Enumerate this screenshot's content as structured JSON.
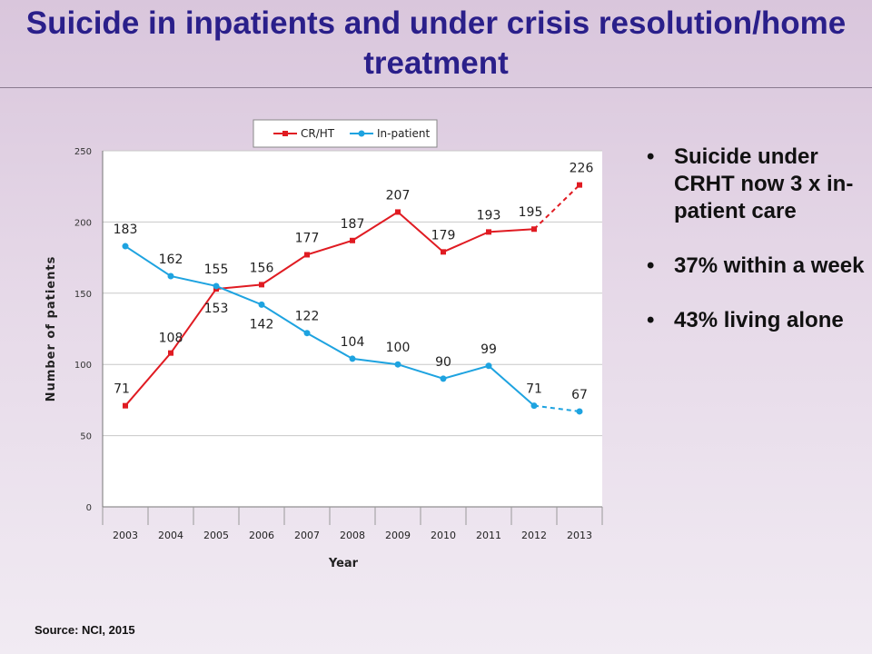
{
  "slide": {
    "title": "Suicide in inpatients and under crisis resolution/home treatment",
    "source": "Source: NCI, 2015",
    "bullets": [
      "Suicide under CRHT now 3 x in-patient care",
      "37% within a week",
      "43% living alone"
    ]
  },
  "chart_data": {
    "type": "line",
    "xlabel": "Year",
    "ylabel": "Number of patients",
    "ylim": [
      0,
      250
    ],
    "yticks": [
      0,
      50,
      100,
      150,
      200,
      250
    ],
    "grid": true,
    "legend_position": "top",
    "categories": [
      "2003",
      "2004",
      "2005",
      "2006",
      "2007",
      "2008",
      "2009",
      "2010",
      "2011",
      "2012",
      "2013"
    ],
    "series": [
      {
        "name": "CR/HT",
        "color": "#e01b22",
        "values": [
          71,
          108,
          153,
          156,
          177,
          187,
          207,
          179,
          193,
          195,
          226
        ],
        "labels": [
          "71",
          "108",
          "153",
          "156",
          "177",
          "187",
          "207",
          "179",
          "193",
          "195",
          "226"
        ],
        "projected_last_segment": true
      },
      {
        "name": "In-patient",
        "color": "#1ea3e0",
        "values": [
          183,
          162,
          155,
          142,
          122,
          104,
          100,
          90,
          99,
          71,
          67
        ],
        "labels": [
          "183",
          "162",
          "155",
          "142",
          "122",
          "104",
          "100",
          "90",
          "99",
          "71",
          "67"
        ],
        "projected_last_segment": true
      }
    ]
  }
}
